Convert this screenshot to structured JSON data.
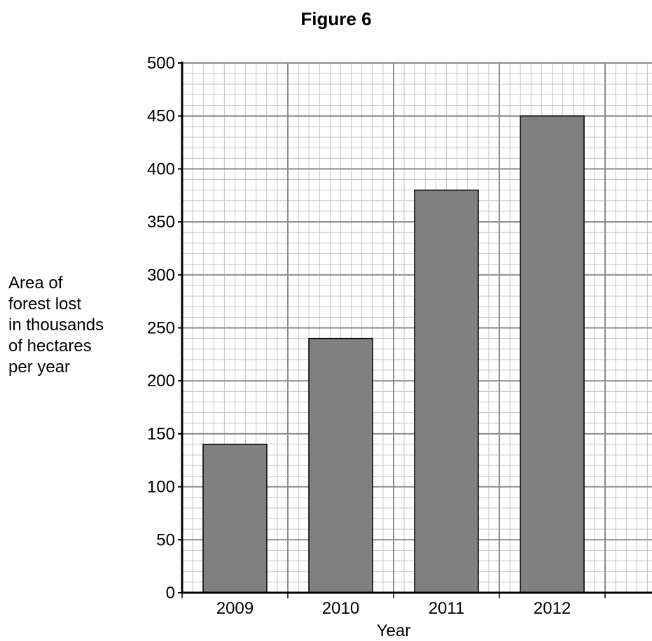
{
  "chart_data": {
    "type": "bar",
    "title": "Figure 6",
    "xlabel": "Year",
    "ylabel_lines": [
      "Area of",
      "forest lost",
      "in thousands",
      "of hectares",
      "per year"
    ],
    "categories": [
      "2009",
      "2010",
      "2011",
      "2012"
    ],
    "values": [
      140,
      240,
      380,
      450
    ],
    "ylim": [
      0,
      500
    ],
    "yticks": [
      0,
      50,
      100,
      150,
      200,
      250,
      300,
      350,
      400,
      450,
      500
    ],
    "grid": true,
    "bar_color": "#808080"
  }
}
